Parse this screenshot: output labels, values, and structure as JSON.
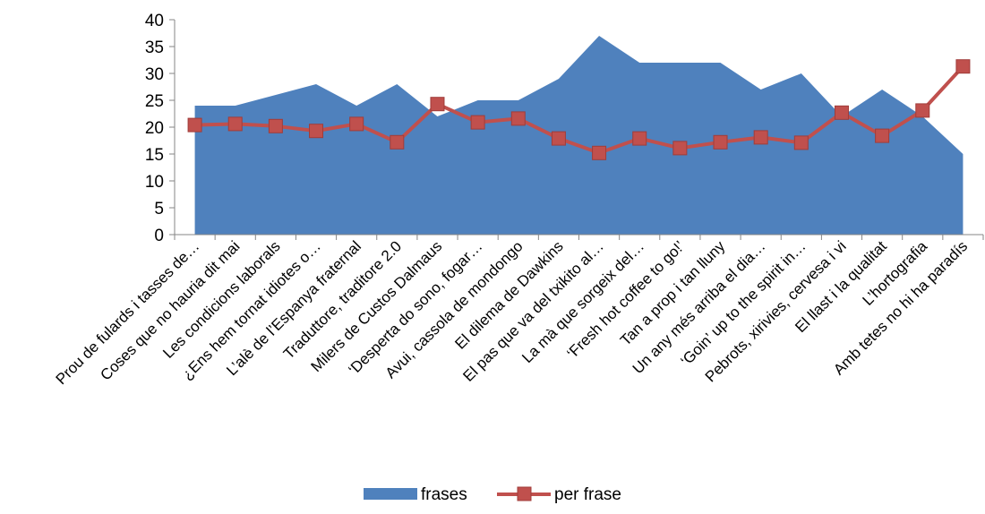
{
  "chart_data": {
    "type": "area",
    "categories": [
      "Prou de fulards i tasses de…",
      "Coses que no hauria dit mai",
      "Les condicions laborals",
      "¿Ens hem tornat idiotes o…",
      "L’alè de l’Espanya fraternal",
      "Traduttore, traditore 2.0",
      "Milers de Custos Dalmaus",
      "‘Desperta do sono, fogar…",
      "Avui, cassola de mondongo",
      "El dilema de Dawkins",
      "El pas que va del txikito al…",
      "La mà que sorgeix del…",
      "‘Fresh hot coffee to go!’",
      "Tan a prop i tan lluny",
      "Un any més arriba el dia…",
      "‘Goin’ up to the spirit in…",
      "Pebrots, xirivies, cervesa i vi",
      "El llast i la qualitat",
      "L’hortografia",
      "Amb tetes no hi ha paradís"
    ],
    "series": [
      {
        "name": "frases",
        "type": "area",
        "color": "#4F81BD",
        "values": [
          24,
          24,
          26,
          28,
          24,
          28,
          22,
          25,
          25,
          29,
          37,
          32,
          32,
          32,
          27,
          30,
          22,
          27,
          22,
          15
        ]
      },
      {
        "name": "per frase",
        "type": "line",
        "color": "#C0504D",
        "values": [
          20.4,
          20.6,
          20.2,
          19.3,
          20.6,
          17.2,
          24.3,
          20.9,
          21.6,
          17.9,
          15.2,
          17.9,
          16.1,
          17.2,
          18.1,
          17.1,
          22.7,
          18.4,
          23.1,
          31.3
        ]
      }
    ],
    "ylim": [
      0,
      40
    ],
    "yticks": [
      "0",
      "5",
      "10",
      "15",
      "20",
      "25",
      "30",
      "35",
      "40"
    ],
    "legend_position": "bottom",
    "grid": false,
    "title": "",
    "xlabel": "",
    "ylabel": ""
  }
}
